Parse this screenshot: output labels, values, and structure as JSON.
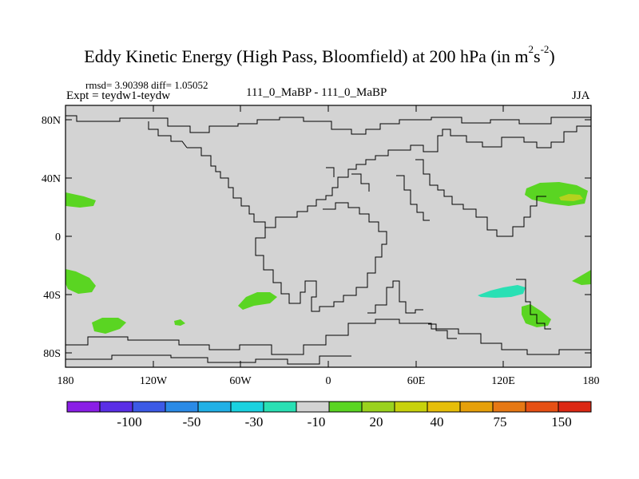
{
  "title": {
    "main": "Eddy Kinetic Energy (High Pass, Bloomfield) at 200 hPa (in m",
    "sup1": "2",
    "mid": "s",
    "sup2": "-2",
    "end": ")"
  },
  "stats": "rmsd= 3.90398 diff= 1.05052",
  "expt": "Expt = teydw1-teydw",
  "center_label": "111_0_MaBP - 111_0_MaBP",
  "season": "JJA",
  "lat_labels": [
    "80N",
    "40N",
    "0",
    "40S",
    "80S"
  ],
  "lon_labels": [
    "180",
    "120W",
    "60W",
    "0",
    "60E",
    "120E",
    "180"
  ],
  "colorbar": {
    "colors": [
      "#8a1ee6",
      "#5a2ee6",
      "#3c5ae6",
      "#2a8ae6",
      "#21b0e6",
      "#1ad2e0",
      "#29e0b4",
      "#d3d3d3",
      "#5ad522",
      "#9ad21e",
      "#c8d20c",
      "#e6be0a",
      "#e6a00a",
      "#e67814",
      "#e65014",
      "#dc2814"
    ],
    "labels": [
      "-100",
      "-50",
      "-30",
      "-10",
      "20",
      "40",
      "75",
      "150"
    ]
  },
  "colors": {
    "land_bg": "#d3d3d3",
    "green": "#5ad522",
    "yellow_green": "#b4d21e",
    "cyan": "#29e0b4"
  }
}
